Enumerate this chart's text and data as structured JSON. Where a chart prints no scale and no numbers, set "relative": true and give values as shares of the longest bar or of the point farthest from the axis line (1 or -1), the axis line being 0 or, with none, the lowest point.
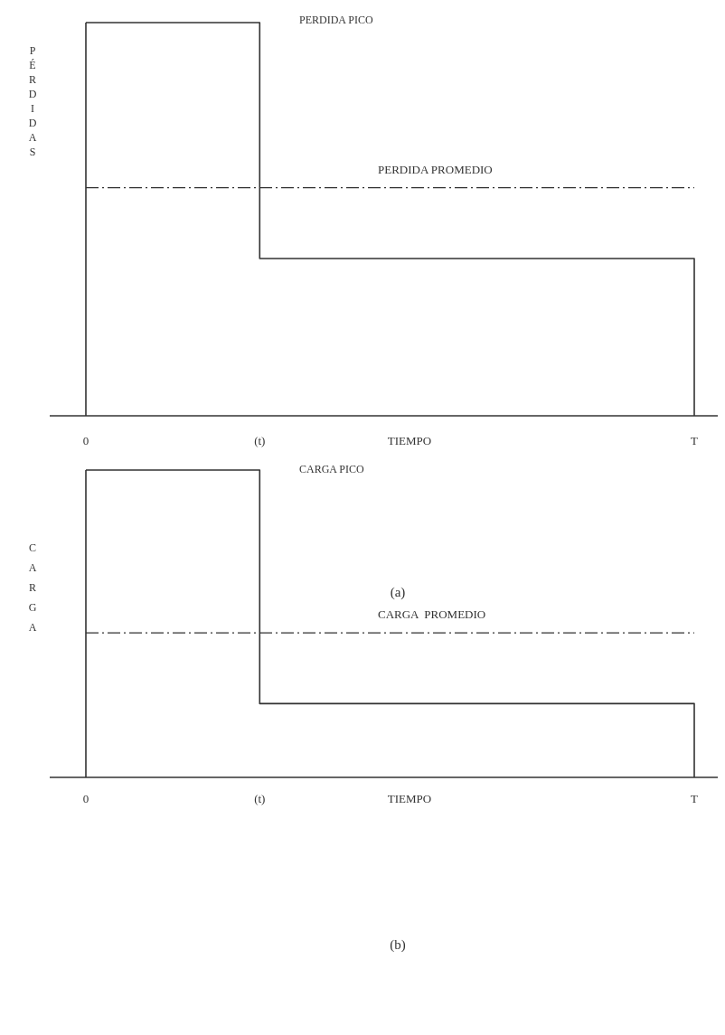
{
  "chart_data": [
    {
      "type": "step",
      "relative": true,
      "ylabel": "PÉRDIDAS",
      "xlabel": "TIEMPO",
      "categories": [
        "0",
        null,
        "(t)",
        null,
        null,
        null,
        null,
        "T"
      ],
      "series": [
        {
          "color": "#333333",
          "values": [
            1,
            1,
            0.4,
            0.4,
            0.4,
            0.4,
            0.4,
            0
          ]
        }
      ],
      "ref_lines": [
        {
          "axis": "y",
          "value": 0.58,
          "label": "PERDIDA PROMEDIO",
          "color": "#333333",
          "line_style": "dashed"
        }
      ],
      "annotations": [
        "PERDIDA PICO",
        "(a)"
      ]
    },
    {
      "type": "step",
      "relative": true,
      "ylabel": "CARGA",
      "xlabel": "TIEMPO",
      "categories": [
        "0",
        null,
        "(t)",
        null,
        null,
        null,
        null,
        "T"
      ],
      "series": [
        {
          "color": "#333333",
          "values": [
            1,
            1,
            0.24,
            0.24,
            0.24,
            0.24,
            0.24,
            0
          ]
        }
      ],
      "ref_lines": [
        {
          "axis": "y",
          "value": 0.47,
          "label": "CARGA  PROMEDIO",
          "color": "#333333",
          "line_style": "dashed"
        }
      ],
      "annotations": [
        "CARGA PICO",
        "(b)"
      ]
    }
  ]
}
